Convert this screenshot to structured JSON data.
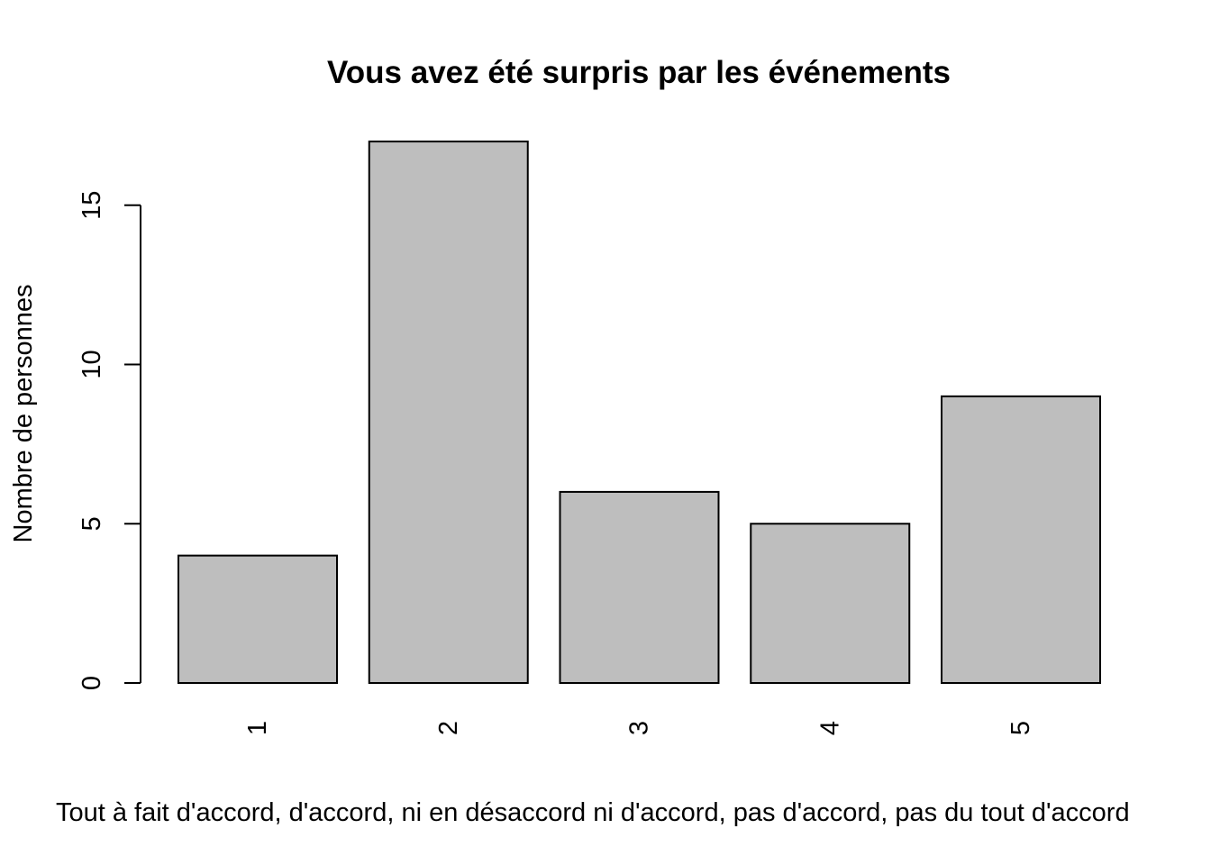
{
  "chart_data": {
    "type": "bar",
    "title": "Vous avez été surpris par les événements",
    "xlabel": "Tout à fait d'accord, d'accord, ni en désaccord ni d'accord, pas d'accord, pas du tout d'accord",
    "ylabel": "Nombre de personnes",
    "categories": [
      "1",
      "2",
      "3",
      "4",
      "5"
    ],
    "values": [
      4,
      17,
      6,
      5,
      9
    ],
    "yticks": [
      "0",
      "5",
      "10",
      "15"
    ],
    "ylim": [
      0,
      17
    ],
    "grid": false,
    "colors": {
      "bar_fill": "#bebebe",
      "bar_stroke": "#000000"
    }
  }
}
